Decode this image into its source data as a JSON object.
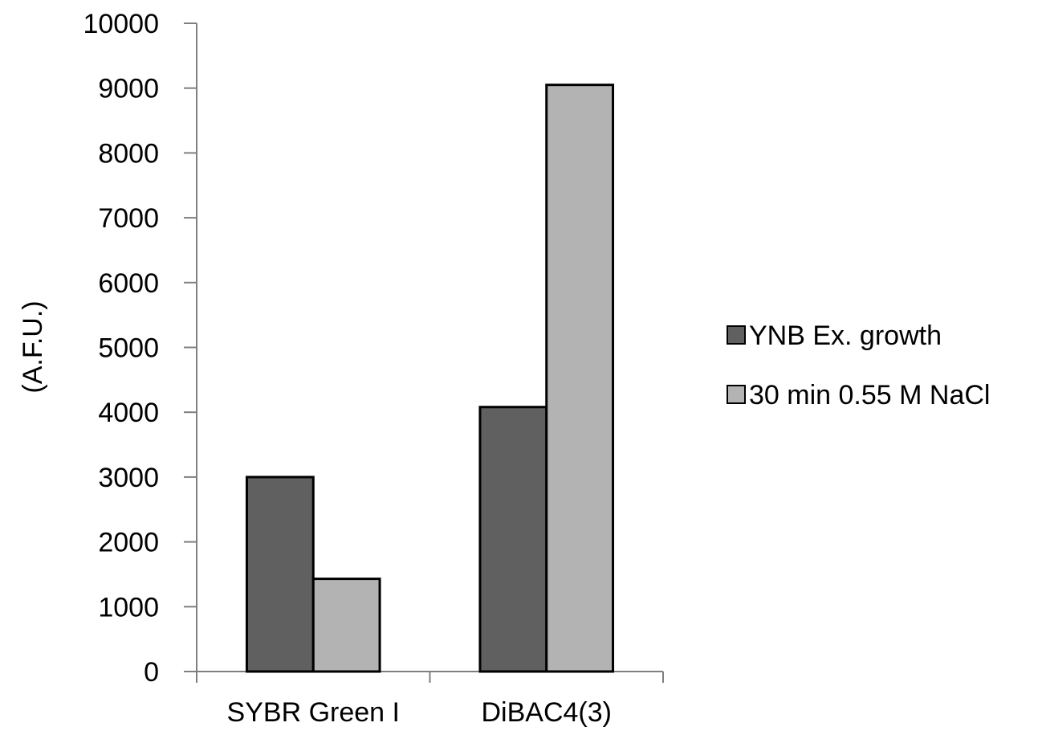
{
  "chart_data": {
    "type": "bar",
    "title": "",
    "xlabel": "",
    "ylabel": "(A.F.U.)",
    "ylim": [
      0,
      10000
    ],
    "yticks": [
      0,
      1000,
      2000,
      3000,
      4000,
      5000,
      6000,
      7000,
      8000,
      9000,
      10000
    ],
    "categories": [
      "SYBR Green I",
      "DiBAC4(3)"
    ],
    "series": [
      {
        "name": "YNB Ex. growth",
        "values": [
          3000,
          4080
        ],
        "color": "#606060"
      },
      {
        "name": "30 min 0.55 M NaCl",
        "values": [
          1430,
          9050
        ],
        "color": "#b3b3b3"
      }
    ],
    "grid": false,
    "legend_position": "right"
  }
}
